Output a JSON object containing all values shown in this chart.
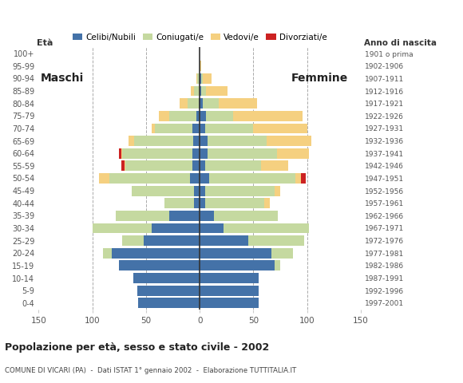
{
  "age_groups_bottom_to_top": [
    "0-4",
    "5-9",
    "10-14",
    "15-19",
    "20-24",
    "25-29",
    "30-34",
    "35-39",
    "40-44",
    "45-49",
    "50-54",
    "55-59",
    "60-64",
    "65-69",
    "70-74",
    "75-79",
    "80-84",
    "85-89",
    "90-94",
    "95-99",
    "100+"
  ],
  "birth_years_bottom_to_top": [
    "1997-2001",
    "1992-1996",
    "1987-1991",
    "1982-1986",
    "1977-1981",
    "1972-1976",
    "1967-1971",
    "1962-1966",
    "1957-1961",
    "1952-1956",
    "1947-1951",
    "1942-1946",
    "1937-1941",
    "1932-1936",
    "1927-1931",
    "1922-1926",
    "1917-1921",
    "1912-1916",
    "1907-1911",
    "1902-1906",
    "1901 o prima"
  ],
  "male": {
    "celibi": [
      57,
      58,
      62,
      75,
      82,
      52,
      45,
      28,
      5,
      5,
      9,
      7,
      7,
      6,
      7,
      3,
      1,
      0,
      0,
      0,
      0
    ],
    "coniugati": [
      0,
      0,
      0,
      0,
      8,
      20,
      55,
      50,
      28,
      58,
      75,
      62,
      65,
      55,
      35,
      25,
      10,
      5,
      2,
      0,
      0
    ],
    "vedovi": [
      0,
      0,
      0,
      0,
      0,
      0,
      0,
      0,
      0,
      0,
      10,
      1,
      1,
      5,
      3,
      10,
      8,
      3,
      1,
      0,
      0
    ],
    "divorziati": [
      0,
      0,
      0,
      0,
      0,
      0,
      0,
      0,
      0,
      0,
      0,
      3,
      2,
      0,
      0,
      0,
      0,
      0,
      0,
      0,
      0
    ]
  },
  "female": {
    "nubili": [
      55,
      55,
      55,
      70,
      67,
      45,
      22,
      13,
      5,
      5,
      9,
      5,
      7,
      7,
      5,
      6,
      3,
      1,
      1,
      0,
      0
    ],
    "coniugate": [
      0,
      0,
      0,
      5,
      20,
      52,
      80,
      60,
      55,
      65,
      80,
      52,
      65,
      55,
      45,
      25,
      15,
      5,
      2,
      0,
      0
    ],
    "vedove": [
      0,
      0,
      0,
      0,
      0,
      0,
      0,
      0,
      5,
      5,
      5,
      25,
      30,
      42,
      50,
      65,
      35,
      20,
      8,
      1,
      0
    ],
    "divorziate": [
      0,
      0,
      0,
      0,
      0,
      0,
      0,
      0,
      0,
      0,
      5,
      0,
      0,
      0,
      0,
      0,
      0,
      0,
      0,
      0,
      0
    ]
  },
  "colors": {
    "celibi": "#4472a8",
    "coniugati": "#c5d9a0",
    "vedovi": "#f5d080",
    "divorziati": "#cc2222"
  },
  "xlim": 150,
  "title": "Popolazione per età, sesso e stato civile - 2002",
  "subtitle": "COMUNE DI VICARI (PA)  -  Dati ISTAT 1° gennaio 2002  -  Elaborazione TUTTITALIA.IT",
  "label_maschi": "Maschi",
  "label_femmine": "Femmine",
  "label_eta": "Età",
  "label_anno": "Anno di nascita",
  "legend_labels": [
    "Celibi/Nubili",
    "Coniugati/e",
    "Vedovi/e",
    "Divorziati/e"
  ],
  "background_color": "#ffffff",
  "grid_color": "#aaaaaa"
}
